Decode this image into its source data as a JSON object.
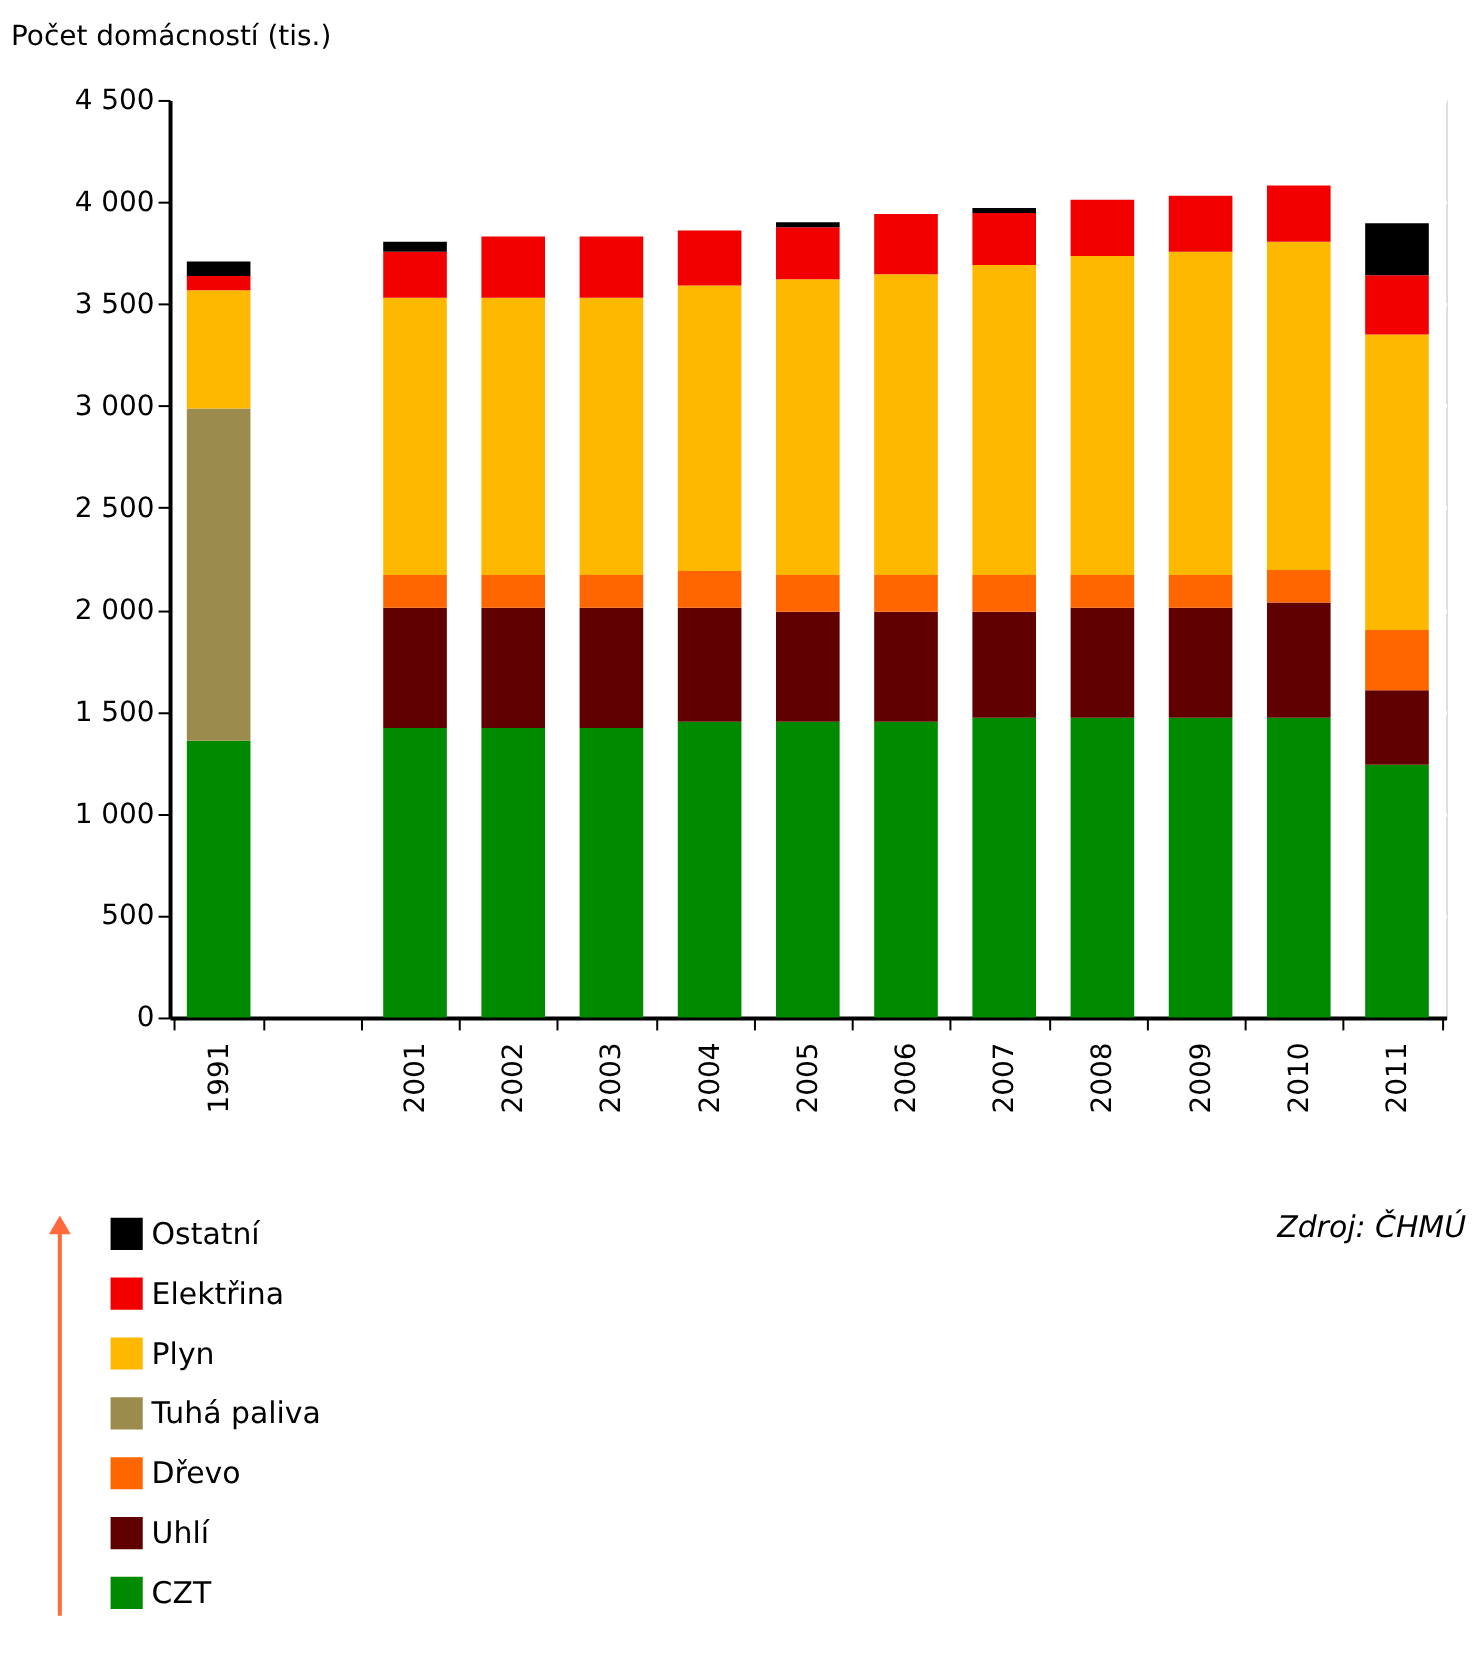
{
  "chart_data": {
    "type": "bar",
    "ylabel": "Počet domácností (tis.)",
    "categories": [
      "1991",
      null,
      "2001",
      "2002",
      "2003",
      "2004",
      "2005",
      "2006",
      "2007",
      "2008",
      "2009",
      "2010",
      "2011"
    ],
    "stacked": true,
    "ylim": [
      0,
      4500
    ],
    "yticks": [
      0,
      500,
      {
        "value": 1000,
        "label": "1 000"
      },
      {
        "value": 1500,
        "label": "1 500"
      },
      {
        "value": 2000,
        "label": "2 000"
      },
      {
        "value": 2500,
        "label": "2 500"
      },
      {
        "value": 3000,
        "label": "3 000"
      },
      {
        "value": 3500,
        "label": "3 500"
      },
      {
        "value": 4000,
        "label": "4 000"
      },
      {
        "value": 4500,
        "label": "4 500"
      }
    ],
    "grid": "y",
    "legend": "bottom",
    "series": [
      {
        "name": "CZT",
        "color": "#008a00",
        "values": [
          1357,
          null,
          1420,
          1420,
          1420,
          1450,
          1450,
          1450,
          1470,
          1470,
          1470,
          1470,
          1240
        ]
      },
      {
        "name": "Uhlí",
        "color": "#600000",
        "values": [
          null,
          null,
          590,
          590,
          590,
          560,
          540,
          540,
          520,
          540,
          540,
          565,
          365
        ]
      },
      {
        "name": "Dřevo",
        "color": "#ff6600",
        "values": [
          null,
          null,
          160,
          160,
          160,
          180,
          180,
          180,
          180,
          160,
          160,
          160,
          295
        ]
      },
      {
        "name": "Tuhá paliva",
        "color": "#9b8c4e",
        "values": [
          1630,
          null,
          null,
          null,
          null,
          null,
          null,
          null,
          null,
          null,
          null,
          null,
          null
        ]
      },
      {
        "name": "Plyn",
        "color": "#ffb800",
        "values": [
          580,
          null,
          1360,
          1360,
          1360,
          1400,
          1450,
          1475,
          1520,
          1565,
          1585,
          1610,
          1450
        ]
      },
      {
        "name": "Elektřina",
        "color": "#f20000",
        "values": [
          70,
          null,
          225,
          300,
          300,
          270,
          255,
          295,
          255,
          275,
          275,
          275,
          290
        ]
      },
      {
        "name": "Ostatní",
        "color": "#000000",
        "values": [
          70,
          null,
          50,
          null,
          null,
          null,
          25,
          null,
          25,
          null,
          null,
          null,
          255
        ]
      }
    ],
    "annotations": [
      "Zdroj: ČHMÚ"
    ]
  }
}
